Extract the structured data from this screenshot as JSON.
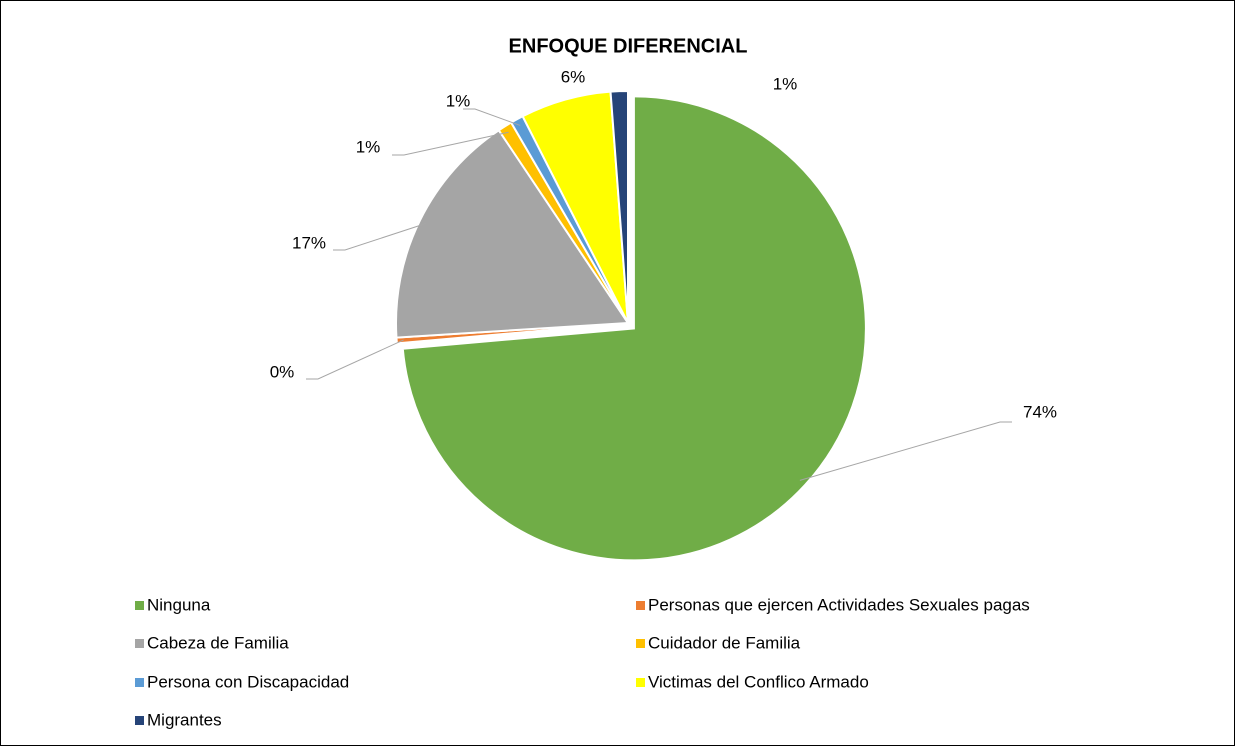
{
  "chart_data": {
    "type": "pie",
    "title": "ENFOQUE DIFERENCIAL",
    "categories": [
      "Ninguna",
      "Personas que ejercen Actividades Sexuales pagas",
      "Cabeza de Familia",
      "Cuidador de Familia",
      "Persona con Discapacidad",
      "Victimas del Conflico Armado",
      "Migrantes"
    ],
    "values": [
      73.6,
      0.4,
      16.6,
      1.0,
      0.9,
      6.3,
      1.2
    ],
    "value_labels": [
      "74%",
      "0%",
      "17%",
      "1%",
      "1%",
      "6%",
      "1%"
    ],
    "colors": [
      "#70ad47",
      "#ed7d31",
      "#a5a5a5",
      "#ffc000",
      "#5b9bd5",
      "#ffff00",
      "#264478"
    ],
    "legend": "bottom"
  }
}
